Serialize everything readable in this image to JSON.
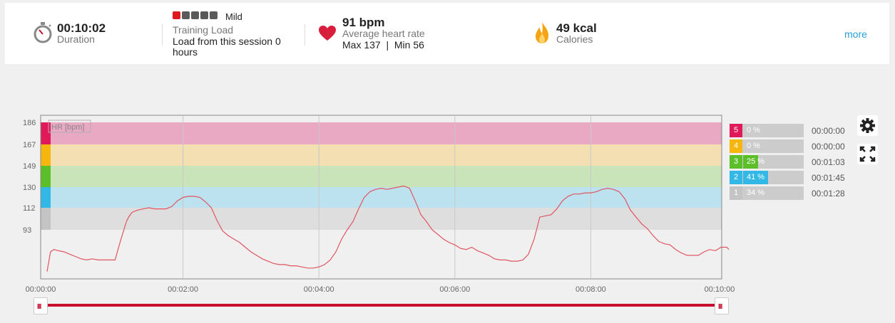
{
  "summary": {
    "duration": {
      "value": "00:10:02",
      "label": "Duration"
    },
    "training_load": {
      "level": "Mild",
      "label": "Training Load",
      "detail": "Load from this session 0 hours",
      "squares_filled": 1,
      "squares_total": 5
    },
    "heart_rate": {
      "value": "91 bpm",
      "label": "Average heart rate",
      "max_min": "Max 137  |  Min 56"
    },
    "calories": {
      "value": "49 kcal",
      "label": "Calories"
    },
    "more_link": "more"
  },
  "colors": {
    "accent": "#c8102e",
    "link": "#2a9fd8",
    "zone5": "#e0195b",
    "zone4": "#f5b60f",
    "zone3": "#5cbf2a",
    "zone2": "#33b8e6",
    "zone1": "#c4c4c4"
  },
  "chart_data": {
    "type": "line",
    "ylabel": "HR [bpm]",
    "y_ticks": [
      186,
      167,
      149,
      130,
      112,
      93
    ],
    "x_ticks": [
      "00:00:00",
      "00:02:00",
      "00:04:00",
      "00:06:00",
      "00:08:00",
      "00:10:00"
    ],
    "zones": [
      {
        "zone": 5,
        "from": 167,
        "to": 186,
        "color": "#e9a9c3"
      },
      {
        "zone": 4,
        "from": 149,
        "to": 167,
        "color": "#f4dfb2"
      },
      {
        "zone": 3,
        "from": 130,
        "to": 149,
        "color": "#c9e4b8"
      },
      {
        "zone": 2,
        "from": 112,
        "to": 130,
        "color": "#bde2ef"
      },
      {
        "zone": 1,
        "from": 93,
        "to": 112,
        "color": "#dededf"
      }
    ],
    "series": [
      {
        "color": "#e05561",
        "x": [
          0,
          3,
          6,
          10,
          15,
          20,
          25,
          30,
          35,
          40,
          45,
          50,
          55,
          60,
          65,
          70,
          72,
          75,
          80,
          85,
          90,
          95,
          100,
          105,
          110,
          115,
          120,
          125,
          130,
          135,
          140,
          145,
          150,
          155,
          160,
          165,
          170,
          175,
          180,
          185,
          190,
          195,
          200,
          205,
          210,
          215,
          220,
          225,
          230,
          235,
          240,
          245,
          250,
          255,
          260,
          265,
          270,
          275,
          280,
          285,
          290,
          295,
          300,
          305,
          310,
          315,
          320,
          325,
          330,
          335,
          340,
          345,
          350,
          355,
          360,
          365,
          370,
          375,
          380,
          385,
          390,
          395,
          400,
          405,
          410,
          415,
          420,
          425,
          430,
          435,
          440,
          445,
          450,
          455,
          460,
          465,
          470,
          475,
          480,
          485,
          490,
          495,
          500,
          505,
          510,
          515,
          520,
          525,
          530,
          535,
          540,
          545,
          550,
          555,
          560,
          565,
          570,
          575,
          580,
          585,
          590,
          595,
          600,
          602
        ],
        "y": [
          57,
          74,
          76,
          75,
          74,
          72,
          70,
          68,
          67,
          68,
          67,
          67,
          67,
          67,
          84,
          100,
          104,
          108,
          110,
          111,
          112,
          111,
          111,
          111,
          113,
          118,
          121,
          122,
          122,
          121,
          117,
          112,
          101,
          92,
          88,
          85,
          82,
          78,
          74,
          71,
          68,
          66,
          64,
          63,
          63,
          62,
          62,
          61,
          60,
          60,
          61,
          63,
          67,
          74,
          85,
          93,
          100,
          111,
          121,
          126,
          128,
          129,
          128,
          129,
          130,
          131,
          129,
          118,
          106,
          100,
          93,
          89,
          85,
          82,
          80,
          77,
          76,
          78,
          75,
          73,
          71,
          68,
          67,
          67,
          66,
          66,
          67,
          72,
          85,
          104,
          105,
          106,
          111,
          118,
          122,
          124,
          124,
          125,
          125,
          126,
          128,
          129,
          128,
          126,
          120,
          110,
          104,
          98,
          94,
          88,
          83,
          81,
          80,
          76,
          73,
          71,
          71,
          71,
          74,
          76,
          75,
          78,
          78,
          76
        ]
      }
    ]
  },
  "zones_table": [
    {
      "num": "5",
      "pct": "0 %",
      "pct_value": 0,
      "time": "00:00:00",
      "color": "#e0195b"
    },
    {
      "num": "4",
      "pct": "0 %",
      "pct_value": 0,
      "time": "00:00:00",
      "color": "#f5b60f"
    },
    {
      "num": "3",
      "pct": "25 %",
      "pct_value": 25,
      "time": "00:01:03",
      "color": "#5cbf2a"
    },
    {
      "num": "2",
      "pct": "41 %",
      "pct_value": 41,
      "time": "00:01:45",
      "color": "#33b8e6"
    },
    {
      "num": "1",
      "pct": "34 %",
      "pct_value": 34,
      "time": "00:01:28",
      "color": "#c4c4c4"
    }
  ],
  "icons": [
    "stopwatch-icon",
    "heart-icon",
    "flame-icon",
    "settings-gear-icon",
    "fullscreen-icon",
    "range-handle-icon"
  ]
}
